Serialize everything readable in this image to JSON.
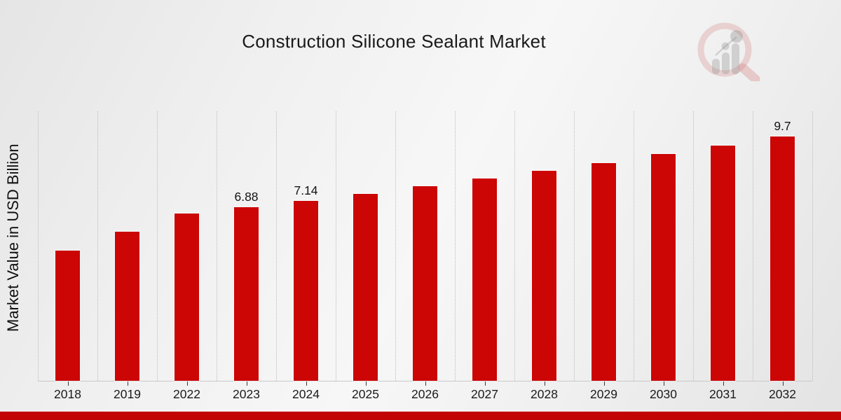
{
  "chart_data": {
    "type": "bar",
    "title": "Construction Silicone Sealant Market",
    "xlabel": "",
    "ylabel": "Market Value in USD Billion",
    "categories": [
      "2018",
      "2019",
      "2022",
      "2023",
      "2024",
      "2025",
      "2026",
      "2027",
      "2028",
      "2029",
      "2030",
      "2031",
      "2032"
    ],
    "values": [
      5.18,
      5.91,
      6.63,
      6.88,
      7.14,
      7.42,
      7.72,
      8.02,
      8.33,
      8.65,
      8.99,
      9.34,
      9.7
    ],
    "data_labels": [
      "",
      "",
      "",
      "6.88",
      "7.14",
      "",
      "",
      "",
      "",
      "",
      "",
      "",
      "9.7"
    ],
    "ylim": [
      0,
      10.7
    ],
    "grid": "vertical dotted gridlines at category boundaries",
    "legend_position": "none",
    "bar_color": "#cc0505",
    "accent_bar_color": "#c30404",
    "text_color": "#1a1a1a"
  },
  "branding": {
    "logo_icon": "magnifying-glass-bar-chart-logo"
  }
}
